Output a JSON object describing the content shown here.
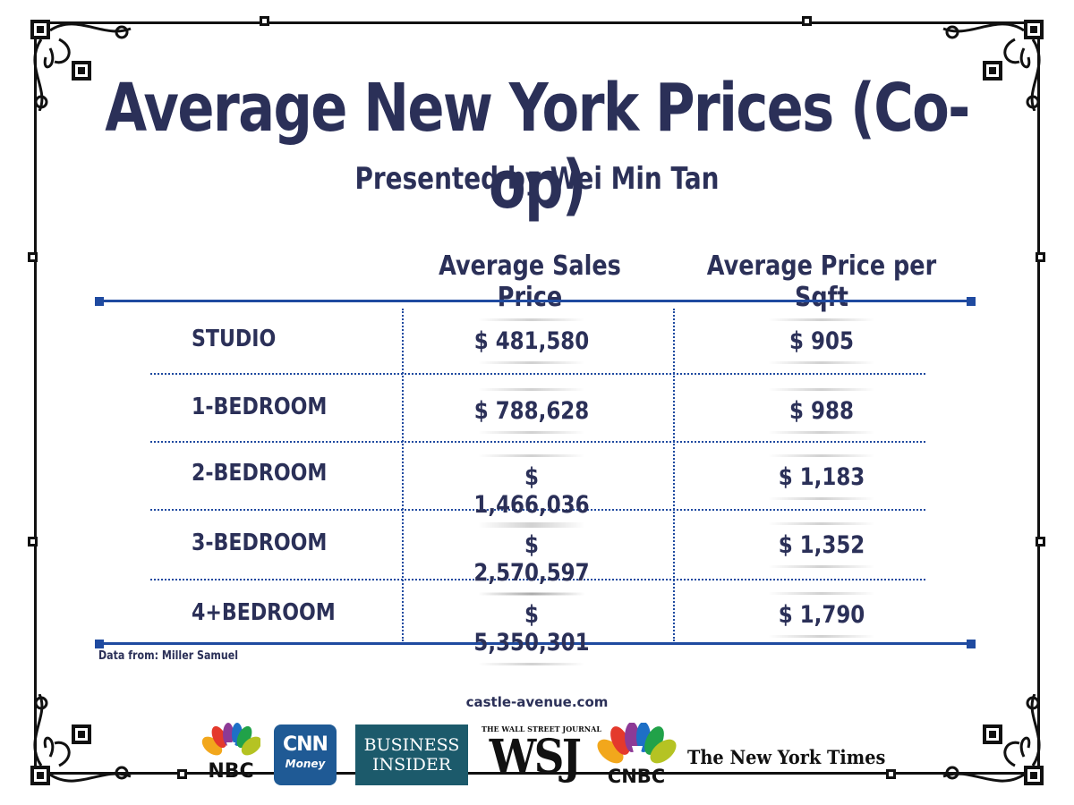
{
  "title": "Average New York Prices (Co-op)",
  "subtitle": "Presented by Wei Min Tan",
  "chart_data": {
    "type": "table",
    "title": "Average New York Prices (Co-op)",
    "columns": [
      "Average Sales Price",
      "Average Price per Sqft"
    ],
    "rows": [
      {
        "label": "STUDIO",
        "sales_price": "$ 481,580",
        "price_per_sqft": "$ 905"
      },
      {
        "label": "1-BEDROOM",
        "sales_price": "$ 788,628",
        "price_per_sqft": "$ 988"
      },
      {
        "label": "2-BEDROOM",
        "sales_price": "$ 1,466,036",
        "price_per_sqft": "$ 1,183"
      },
      {
        "label": "3-BEDROOM",
        "sales_price": "$ 2,570,597",
        "price_per_sqft": "$ 1,352"
      },
      {
        "label": "4+BEDROOM",
        "sales_price": "$ 5,350,301",
        "price_per_sqft": "$ 1,790"
      }
    ],
    "values_sales": [
      481580,
      788628,
      1466036,
      2570597,
      5350301
    ],
    "values_sqft": [
      905,
      988,
      1183,
      1352,
      1790
    ]
  },
  "source": "Data from: Miller Samuel",
  "website": "castle-avenue.com",
  "logos": {
    "nbc": "NBC",
    "cnn_top": "CNN",
    "cnn_bottom": "Money",
    "bi_top": "BUSINESS",
    "bi_bottom": "INSIDER",
    "wsj_top": "THE WALL STREET JOURNAL",
    "wsj": "WSJ",
    "cnbc": "CNBC",
    "nyt": "The New York Times"
  },
  "colors": {
    "text": "#2b3058",
    "accent": "#1f4aa0"
  }
}
